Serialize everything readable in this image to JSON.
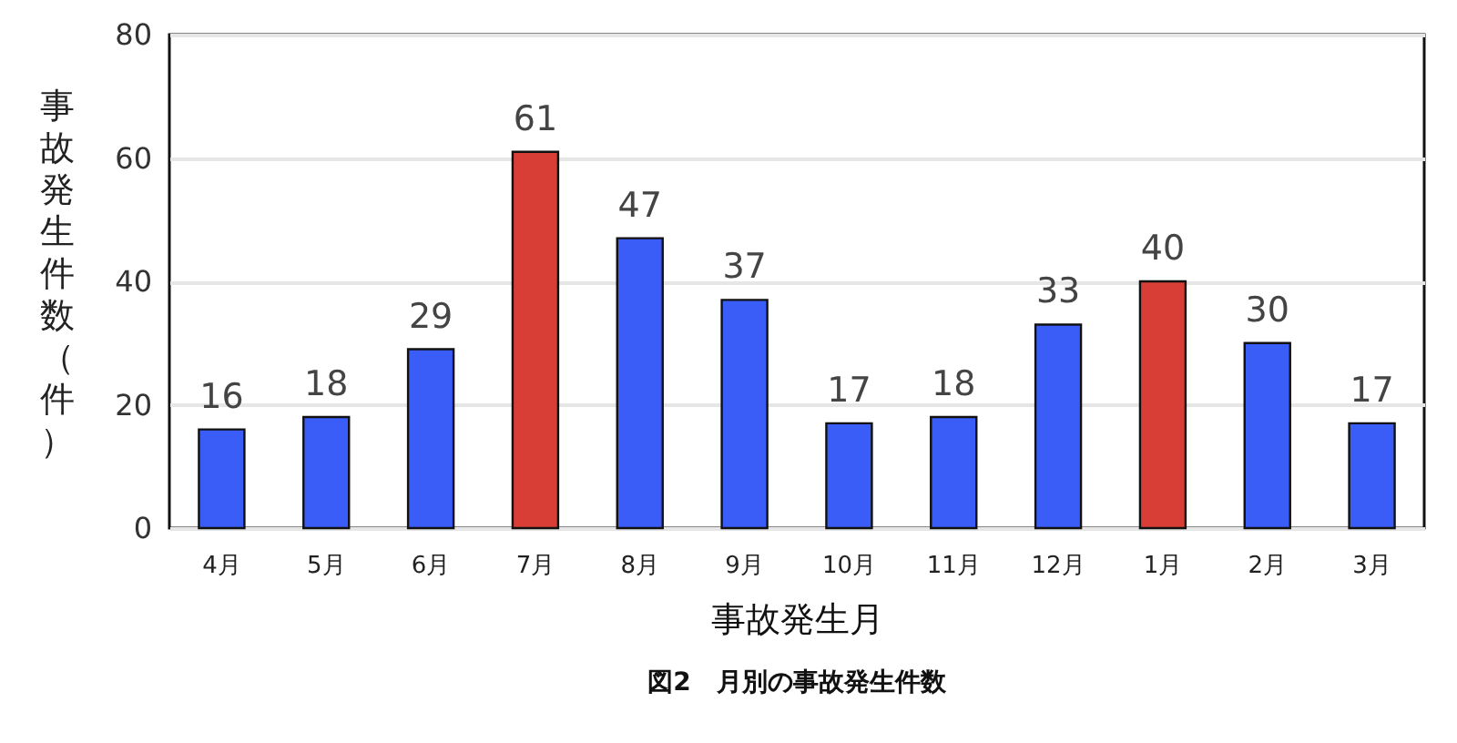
{
  "chart_data": {
    "type": "bar",
    "title": "図2　月別の事故発生件数",
    "xlabel": "事故発生月",
    "ylabel": "事故発生件数（件）",
    "categories": [
      "4月",
      "5月",
      "6月",
      "7月",
      "8月",
      "9月",
      "10月",
      "11月",
      "12月",
      "1月",
      "2月",
      "3月"
    ],
    "values": [
      16,
      18,
      29,
      61,
      47,
      37,
      17,
      18,
      33,
      40,
      30,
      17
    ],
    "colors": [
      "#3a5cf7",
      "#3a5cf7",
      "#3a5cf7",
      "#d83e36",
      "#3a5cf7",
      "#3a5cf7",
      "#3a5cf7",
      "#3a5cf7",
      "#3a5cf7",
      "#d83e36",
      "#3a5cf7",
      "#3a5cf7"
    ],
    "ylim": [
      0,
      80
    ],
    "yticks": [
      0,
      20,
      40,
      60,
      80
    ],
    "grid": "y",
    "data_labels": true
  }
}
